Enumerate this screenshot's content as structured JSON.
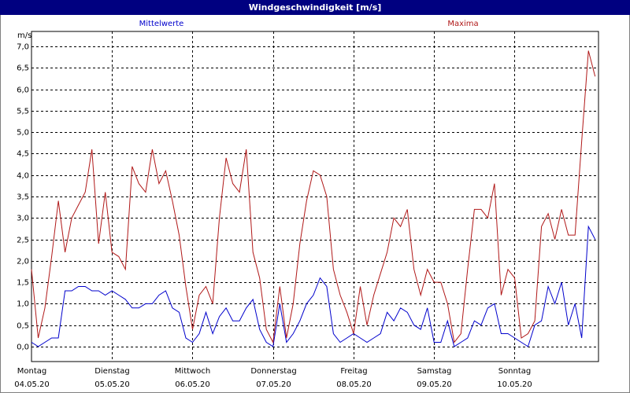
{
  "chart_data": {
    "type": "line",
    "title": "Windgeschwindigkeit [m/s]",
    "y_unit": "m/s",
    "x": [
      0,
      2,
      4,
      6,
      8,
      10,
      12,
      14,
      16,
      18,
      20,
      22,
      24,
      26,
      28,
      30,
      32,
      34,
      36,
      38,
      40,
      42,
      44,
      46,
      48,
      50,
      52,
      54,
      56,
      58,
      60,
      62,
      64,
      66,
      68,
      70,
      72,
      74,
      76,
      78,
      80,
      82,
      84,
      86,
      88,
      90,
      92,
      94,
      96,
      98,
      100,
      102,
      104,
      106,
      108,
      110,
      112,
      114,
      116,
      118,
      120,
      122,
      124,
      126,
      128,
      130,
      132,
      134,
      136,
      138,
      140,
      142,
      144,
      146,
      148,
      150,
      152,
      154,
      156,
      158,
      160,
      162,
      164,
      166,
      168
    ],
    "series": [
      {
        "name": "Mittelwerte",
        "color": "#0000cc",
        "values": [
          0.1,
          0.0,
          0.1,
          0.2,
          0.2,
          1.3,
          1.3,
          1.4,
          1.4,
          1.3,
          1.3,
          1.2,
          1.3,
          1.2,
          1.1,
          0.9,
          0.9,
          1.0,
          1.0,
          1.2,
          1.3,
          0.9,
          0.8,
          0.2,
          0.1,
          0.3,
          0.8,
          0.3,
          0.7,
          0.9,
          0.6,
          0.6,
          0.9,
          1.1,
          0.4,
          0.1,
          0.0,
          1.0,
          0.1,
          0.3,
          0.6,
          1.0,
          1.2,
          1.6,
          1.4,
          0.3,
          0.1,
          0.2,
          0.3,
          0.2,
          0.1,
          0.2,
          0.3,
          0.8,
          0.6,
          0.9,
          0.8,
          0.5,
          0.4,
          0.9,
          0.1,
          0.1,
          0.6,
          0.0,
          0.1,
          0.2,
          0.6,
          0.5,
          0.9,
          1.0,
          0.3,
          0.3,
          0.2,
          0.1,
          0.0,
          0.5,
          0.6,
          1.4,
          1.0,
          1.5,
          0.5,
          1.0,
          0.2,
          2.8,
          2.5
        ]
      },
      {
        "name": "Maxima",
        "color": "#b01818",
        "values": [
          1.8,
          0.2,
          0.9,
          2.1,
          3.4,
          2.2,
          3.0,
          3.3,
          3.6,
          4.6,
          2.4,
          3.6,
          2.2,
          2.1,
          1.8,
          4.2,
          3.8,
          3.6,
          4.6,
          3.8,
          4.1,
          3.4,
          2.6,
          1.4,
          0.4,
          1.2,
          1.4,
          1.0,
          3.0,
          4.4,
          3.8,
          3.6,
          4.6,
          2.2,
          1.6,
          0.4,
          0.1,
          1.4,
          0.2,
          1.0,
          2.4,
          3.4,
          4.1,
          4.0,
          3.5,
          1.8,
          1.2,
          0.8,
          0.3,
          1.4,
          0.5,
          1.2,
          1.7,
          2.2,
          3.0,
          2.8,
          3.2,
          1.8,
          1.2,
          1.8,
          1.5,
          1.5,
          1.0,
          0.1,
          0.3,
          1.8,
          3.2,
          3.2,
          3.0,
          3.8,
          1.2,
          1.8,
          1.6,
          0.2,
          0.3,
          0.6,
          2.8,
          3.1,
          2.5,
          3.2,
          2.6,
          2.6,
          4.8,
          6.9,
          6.3
        ]
      }
    ],
    "xlim": [
      0,
      169
    ],
    "xticks": [
      {
        "value": 0,
        "label": "Montag"
      },
      {
        "value": 24,
        "label": "Dienstag"
      },
      {
        "value": 48,
        "label": "Mittwoch"
      },
      {
        "value": 72,
        "label": "Donnerstag"
      },
      {
        "value": 96,
        "label": "Freitag"
      },
      {
        "value": 120,
        "label": "Samstag"
      },
      {
        "value": 144,
        "label": "Sonntag"
      }
    ],
    "xtick_dates": [
      "04.05.20",
      "05.05.20",
      "06.05.20",
      "07.05.20",
      "08.05.20",
      "09.05.20",
      "10.05.20"
    ],
    "ylim": [
      -0.35,
      7.35
    ],
    "yticks": [
      {
        "value": 0,
        "label": "0,0"
      },
      {
        "value": 0.5,
        "label": "0,5"
      },
      {
        "value": 1,
        "label": "1,0"
      },
      {
        "value": 1.5,
        "label": "1,5"
      },
      {
        "value": 2,
        "label": "2,0"
      },
      {
        "value": 2.5,
        "label": "2,5"
      },
      {
        "value": 3,
        "label": "3,0"
      },
      {
        "value": 3.5,
        "label": "3,5"
      },
      {
        "value": 4,
        "label": "4,0"
      },
      {
        "value": 4.5,
        "label": "4,5"
      },
      {
        "value": 5,
        "label": "5,0"
      },
      {
        "value": 5.5,
        "label": "5,5"
      },
      {
        "value": 6,
        "label": "6,0"
      },
      {
        "value": 6.5,
        "label": "6,5"
      },
      {
        "value": 7,
        "label": "7,0"
      }
    ],
    "grid": true
  }
}
